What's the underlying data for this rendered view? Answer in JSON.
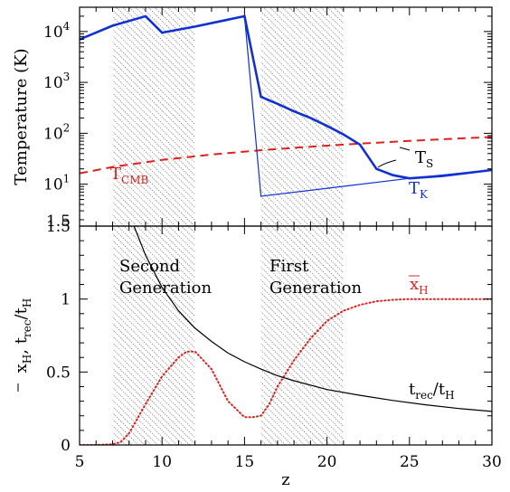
{
  "chart_data": [
    {
      "type": "line",
      "panel": "top",
      "ylabel": "Temperature (K)",
      "yscale": "log",
      "ylim": [
        1.5,
        30000
      ],
      "xlim": [
        5,
        30
      ],
      "yticks": [
        {
          "value": 10,
          "base": "10",
          "exp": "1"
        },
        {
          "value": 100,
          "base": "10",
          "exp": "2"
        },
        {
          "value": 1000,
          "base": "10",
          "exp": "3"
        },
        {
          "value": 10000,
          "base": "10",
          "exp": "4"
        }
      ],
      "ymin_label": "1.5",
      "shaded_regions": [
        [
          7,
          12
        ],
        [
          16,
          21
        ]
      ],
      "series": [
        {
          "name": "T_CMB",
          "label_main": "T",
          "label_sub": "CMB",
          "color": "#e02020",
          "style": "dashed",
          "x": [
            5,
            7,
            10,
            13,
            16,
            19,
            22,
            25,
            28,
            30
          ],
          "y": [
            16.3,
            21.8,
            30.0,
            38.2,
            46.4,
            54.5,
            62.7,
            70.9,
            79.1,
            84.5
          ]
        },
        {
          "name": "T_S",
          "label_main": "T",
          "label_sub": "S",
          "color": "#1030d0",
          "style": "thick",
          "x": [
            5,
            7,
            9,
            10,
            12,
            15,
            16,
            17,
            18,
            19,
            20,
            21,
            22,
            23,
            24,
            25,
            27,
            30
          ],
          "y": [
            7000,
            13000,
            20000,
            9500,
            12500,
            20000,
            520,
            380,
            270,
            200,
            140,
            95,
            60,
            20,
            15,
            13,
            14.5,
            19
          ]
        },
        {
          "name": "T_K",
          "label_main": "T",
          "label_sub": "K",
          "color": "#1030d0",
          "style": "thin",
          "x": [
            15,
            16,
            25,
            30
          ],
          "y": [
            20000,
            5.8,
            13,
            19
          ]
        }
      ]
    },
    {
      "type": "line",
      "panel": "bottom",
      "xlabel": "z",
      "xlim": [
        5,
        30
      ],
      "ylim": [
        0,
        1.5
      ],
      "xticks": [
        "5",
        "10",
        "15",
        "20",
        "25",
        "30"
      ],
      "yticks": [
        "0",
        "0.5",
        "1",
        "1.5"
      ],
      "shaded_regions": [
        [
          7,
          12
        ],
        [
          16,
          21
        ]
      ],
      "region_labels": [
        {
          "line1": "Second",
          "line2": "Generation",
          "x": 7.5
        },
        {
          "line1": "First",
          "line2": "Generation",
          "x": 16.5
        }
      ],
      "ylabel": {
        "xbar": "x",
        "xbar_sub": "H",
        "sep": ",  ",
        "t": "t",
        "t_sub": "rec",
        "slash": "/t",
        "h_sub": "H"
      },
      "series": [
        {
          "name": "x_H",
          "label_main": "x",
          "label_sub": "H",
          "overbar": true,
          "color": "#e02020",
          "style": "dotted",
          "x": [
            5,
            6,
            7,
            7.5,
            8,
            9,
            10,
            11,
            11.5,
            12,
            13,
            14,
            15,
            15.5,
            16,
            16.5,
            17,
            18,
            19,
            20,
            21,
            22,
            23,
            24,
            25,
            26,
            28,
            30
          ],
          "y": [
            0,
            0,
            0.005,
            0.02,
            0.08,
            0.28,
            0.47,
            0.6,
            0.64,
            0.64,
            0.52,
            0.3,
            0.19,
            0.19,
            0.2,
            0.28,
            0.4,
            0.58,
            0.73,
            0.85,
            0.92,
            0.96,
            0.985,
            0.995,
            1.0,
            1.0,
            1.0,
            1.0
          ]
        },
        {
          "name": "t_rec/t_H",
          "label_main": "t",
          "label_sub": "rec",
          "label_tail": "/t",
          "label_tail_sub": "H",
          "color": "#000000",
          "style": "solid",
          "x": [
            8.3,
            9,
            10,
            11,
            12,
            13,
            14,
            15,
            16,
            17,
            18,
            20,
            22,
            24,
            26,
            28,
            30
          ],
          "y": [
            1.5,
            1.3,
            1.08,
            0.92,
            0.8,
            0.71,
            0.63,
            0.57,
            0.52,
            0.475,
            0.44,
            0.38,
            0.34,
            0.305,
            0.275,
            0.25,
            0.23
          ]
        }
      ]
    }
  ]
}
